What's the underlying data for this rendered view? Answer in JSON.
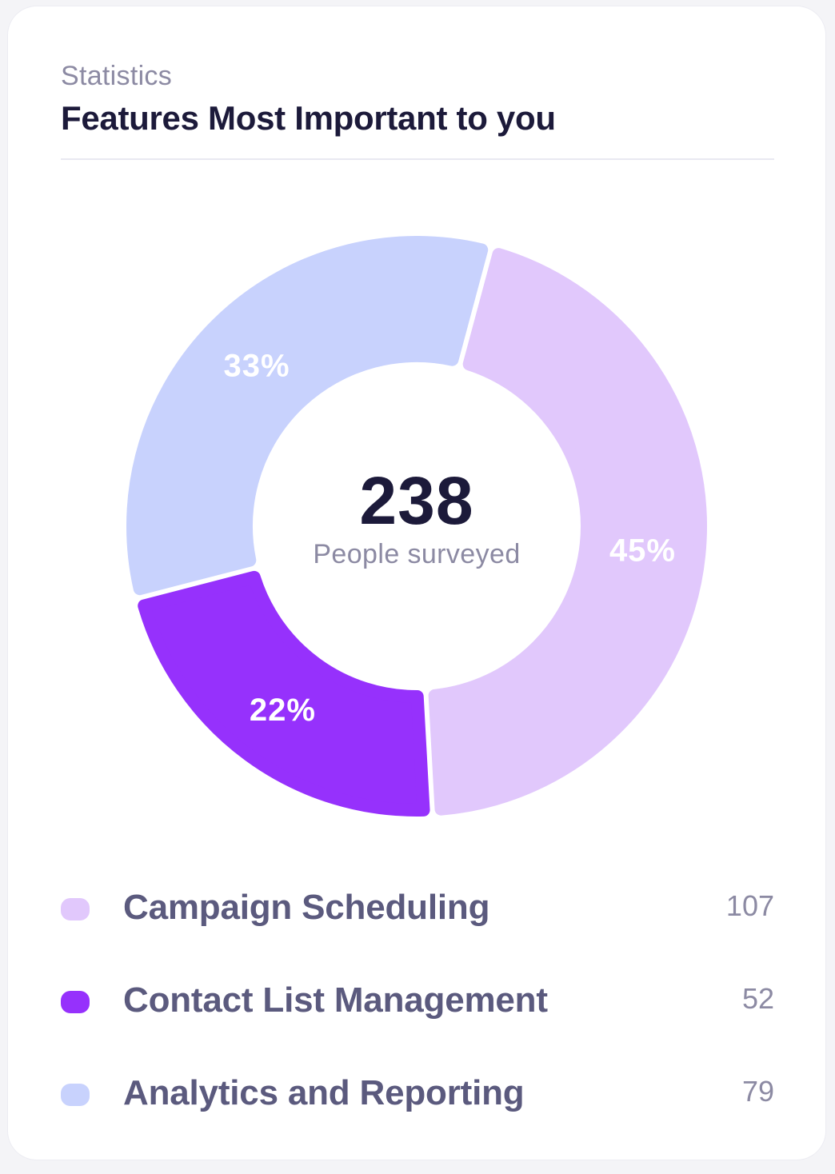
{
  "header": {
    "kicker": "Statistics",
    "title": "Features Most Important to you"
  },
  "center": {
    "value": "238",
    "label": "People surveyed"
  },
  "colors": {
    "campaign": "#e1c8fc",
    "contact": "#9631fc",
    "analytics": "#c8d2fd",
    "slice_label": "#ffffff"
  },
  "legend": [
    {
      "label": "Campaign Scheduling",
      "count": "107"
    },
    {
      "label": "Contact List Management",
      "count": "52"
    },
    {
      "label": "Analytics and Reporting",
      "count": "79"
    }
  ],
  "chart_data": {
    "type": "pie",
    "variant": "donut",
    "title": "Features Most Important to you",
    "total": 238,
    "categories": [
      "Campaign Scheduling",
      "Contact List Management",
      "Analytics and Reporting"
    ],
    "values": [
      107,
      52,
      79
    ],
    "percent_labels": [
      "45%",
      "22%",
      "33%"
    ],
    "legend_placement": "bottom"
  }
}
